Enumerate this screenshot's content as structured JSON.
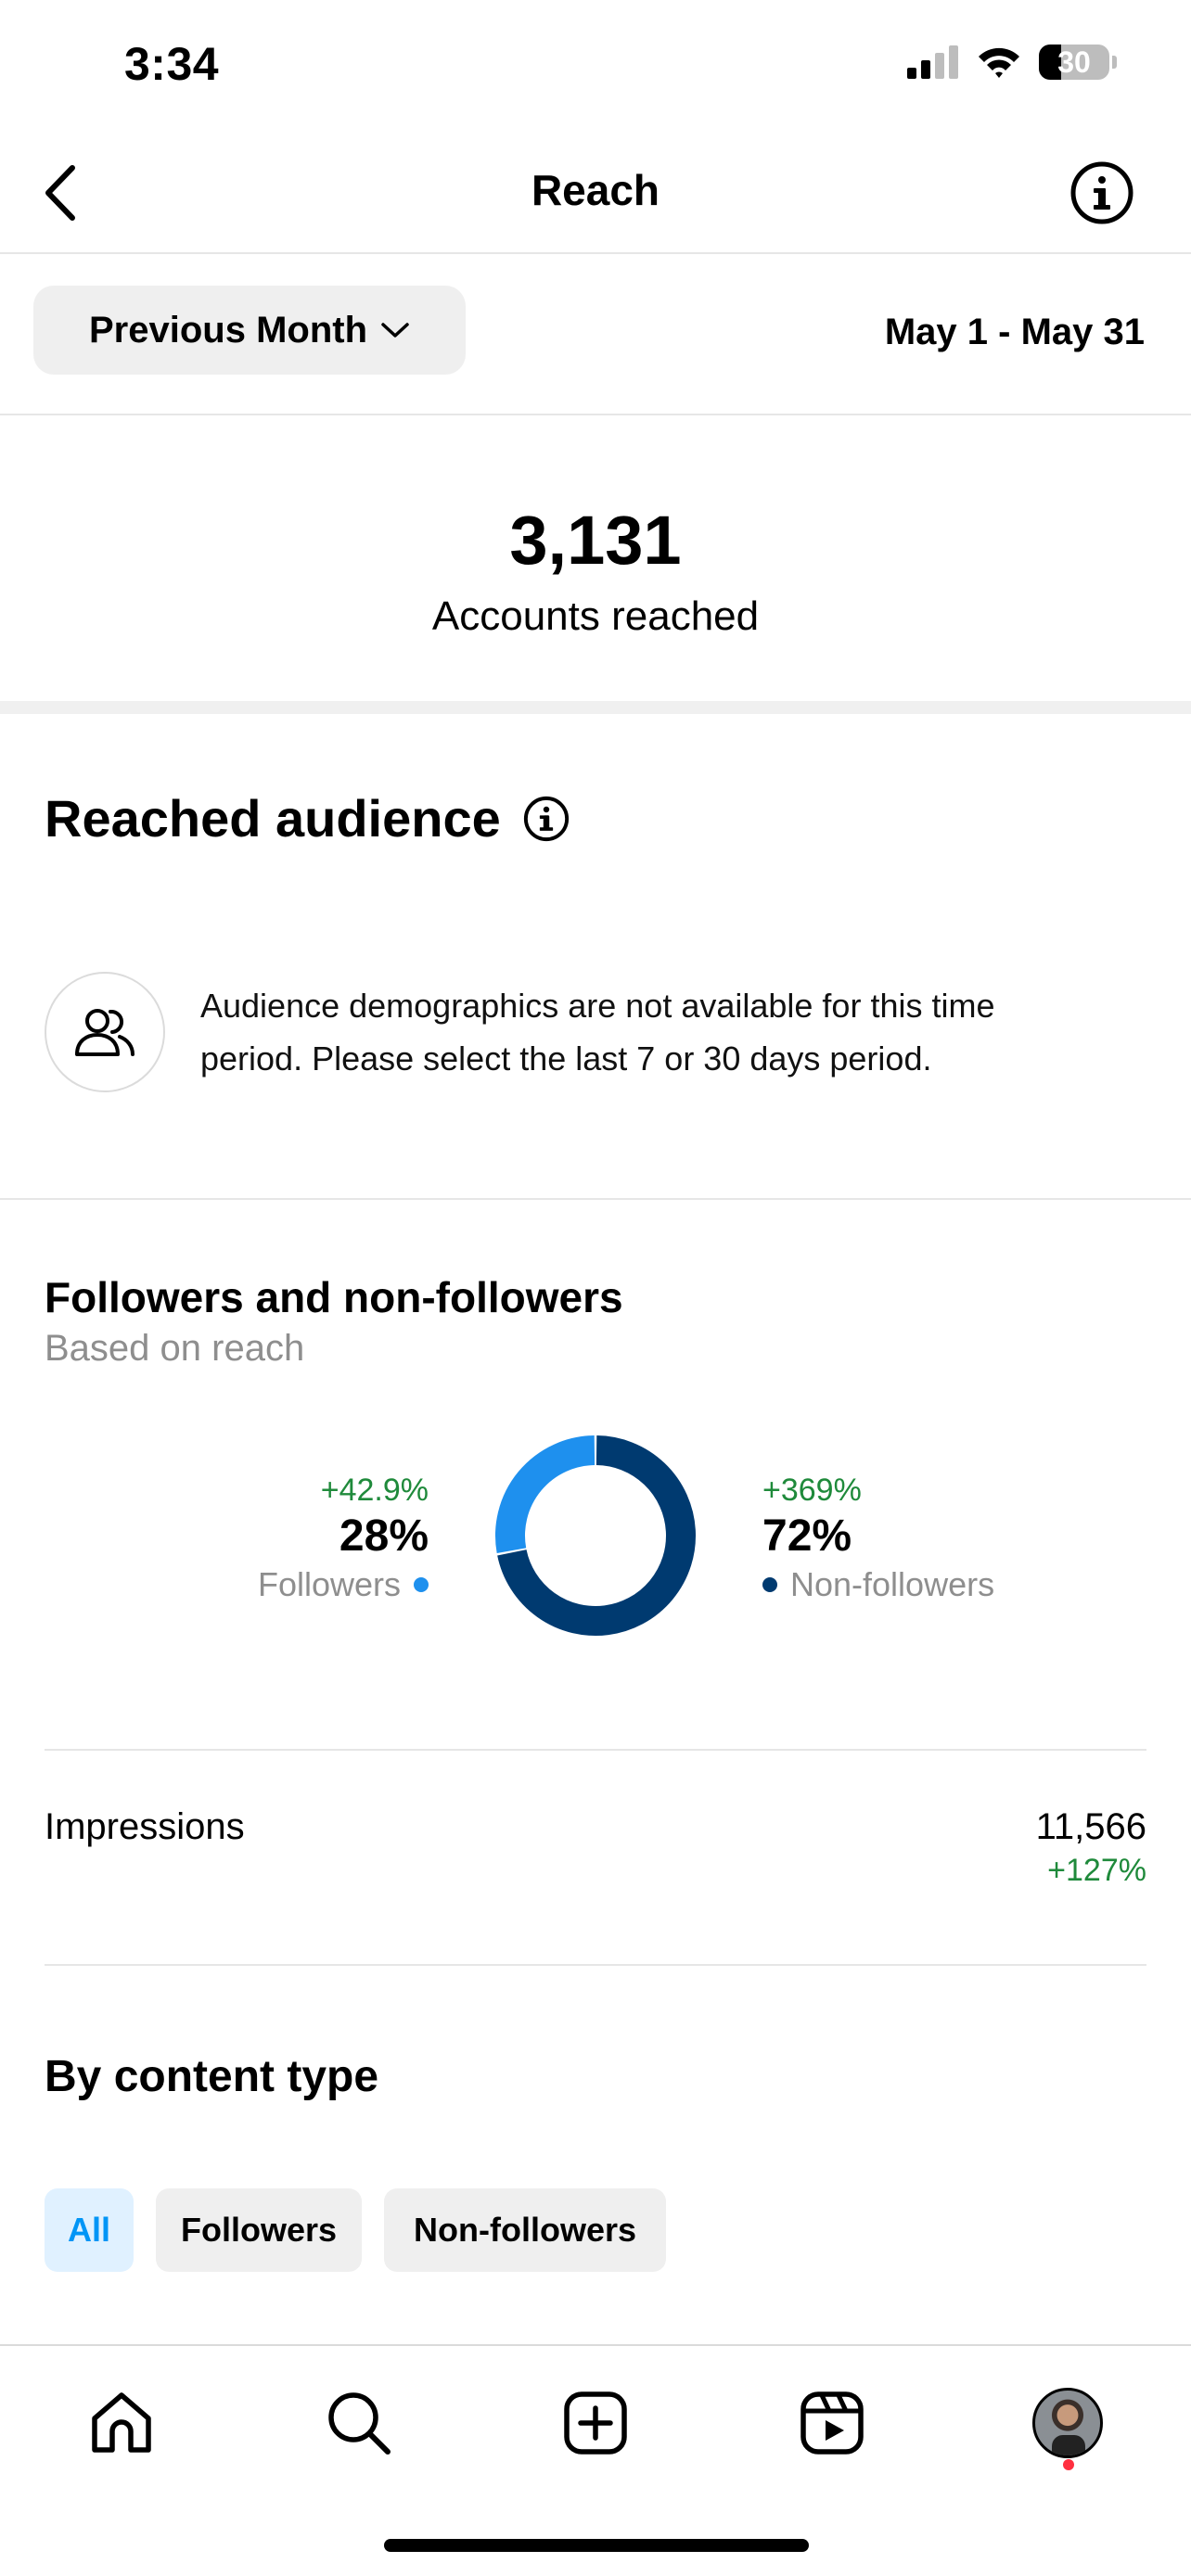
{
  "status_bar": {
    "time": "3:34",
    "battery": "30"
  },
  "header": {
    "title": "Reach"
  },
  "filter": {
    "period_label": "Previous Month",
    "date_range": "May 1 - May 31"
  },
  "summary": {
    "count": "3,131",
    "label": "Accounts reached"
  },
  "reached_audience": {
    "title": "Reached audience",
    "message": "Audience demographics are not available for this time period. Please select the last 7 or 30 days period."
  },
  "followers_section": {
    "title": "Followers and non-followers",
    "caption": "Based on reach",
    "followers": {
      "change": "+42.9%",
      "percent": "28%",
      "label": "Followers",
      "color": "#1e90ee"
    },
    "non_followers": {
      "change": "+369%",
      "percent": "72%",
      "label": "Non-followers",
      "color": "#003a70"
    }
  },
  "chart_data": {
    "type": "pie",
    "categories": [
      "Followers",
      "Non-followers"
    ],
    "values": [
      28,
      72
    ],
    "colors": [
      "#1e90ee",
      "#003a70"
    ]
  },
  "impressions": {
    "label": "Impressions",
    "value": "11,566",
    "change": "+127%"
  },
  "content_type": {
    "title": "By content type",
    "chips": [
      {
        "label": "All",
        "active": true
      },
      {
        "label": "Followers",
        "active": false
      },
      {
        "label": "Non-followers",
        "active": false
      }
    ]
  },
  "tab_bar": {
    "icons": [
      "home-icon",
      "search-icon",
      "create-icon",
      "reels-icon",
      "profile-avatar"
    ]
  }
}
